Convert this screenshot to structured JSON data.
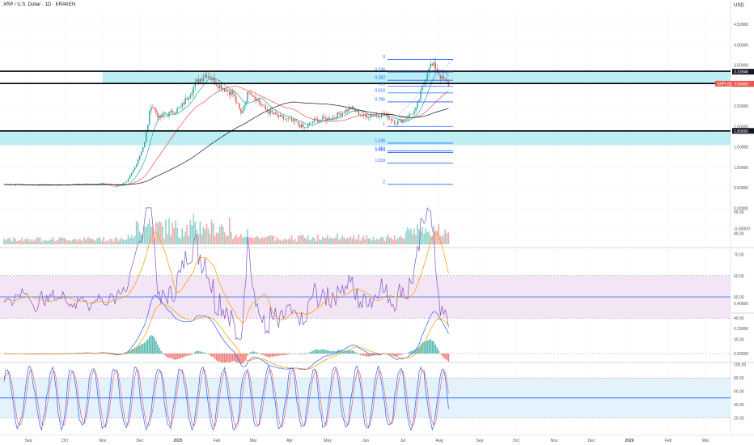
{
  "header": {
    "symbol_title": "XRP / U.S. Dollar · 1D · KRAKEN",
    "currency": "USD"
  },
  "colors": {
    "up": "#26a69a",
    "down": "#ef5350",
    "zone": "#b2ebf2",
    "fib": "#2962ff",
    "rsi_band": "#f3e5f5",
    "stoch_band": "#e3f2fd",
    "ma_fast": "#26a69a",
    "ma_mid": "#ef5350",
    "ma_slow": "#131722",
    "rsi": "#7e57c2",
    "rsi_ma": "#ff9800",
    "macd": "#2962ff",
    "signal": "#ff9800",
    "stoch_k": "#2962ff",
    "stoch_d": "#ef5350"
  },
  "price_axis": [
    {
      "label": "4.50000",
      "value": 4.5
    },
    {
      "label": "4.00000",
      "value": 4.0
    },
    {
      "label": "3.50000",
      "value": 3.5
    },
    {
      "label": "2.50000",
      "value": 2.5
    },
    {
      "label": "2.00000",
      "value": 2.0
    },
    {
      "label": "1.50000",
      "value": 1.5
    },
    {
      "label": "1.00000",
      "value": 1.0
    },
    {
      "label": "0.50000",
      "value": 0.5
    },
    {
      "label": "0.00000",
      "value": 0.0
    },
    {
      "label": "-0.50000",
      "value": -0.5
    }
  ],
  "price_tags": [
    {
      "label": "3.33946",
      "value": 3.33946,
      "color": "#131722"
    },
    {
      "label": "3.04143",
      "value": 3.04143,
      "color": "#131722"
    },
    {
      "label": "1.89065",
      "value": 1.89065,
      "color": "#131722"
    }
  ],
  "last_price_tag": {
    "symbol": "XRPUSD",
    "label": "3.04669",
    "value": 3.04669,
    "color": "#ef5350"
  },
  "fib_levels": [
    {
      "label": "0",
      "value": 3.64
    },
    {
      "label": "0.236",
      "value": 3.33
    },
    {
      "label": "0.382",
      "value": 3.13
    },
    {
      "label": "0.5",
      "value": 2.98
    },
    {
      "label": "0.618",
      "value": 2.82
    },
    {
      "label": "0.786",
      "value": 2.6
    },
    {
      "label": "1",
      "value": 2.0
    },
    {
      "label": "1.236",
      "value": 1.59
    },
    {
      "label": "1.382",
      "value": 1.4
    },
    {
      "label": "1.414",
      "value": 1.36
    },
    {
      "label": "1.618",
      "value": 1.1
    },
    {
      "label": "2",
      "value": 0.58
    }
  ],
  "horizontal_levels": [
    {
      "name": "upper-resistance",
      "value": 3.35
    },
    {
      "name": "mid-resistance",
      "value": 3.05
    },
    {
      "name": "lower-support",
      "value": 1.89
    }
  ],
  "rsi_axis": [
    {
      "label": "90.00",
      "value": 90
    },
    {
      "label": "80.00",
      "value": 80
    },
    {
      "label": "70.00",
      "value": 70
    },
    {
      "label": "60.00",
      "value": 60
    },
    {
      "label": "50.00",
      "value": 50
    },
    {
      "label": "40.00",
      "value": 40
    },
    {
      "label": "30.00",
      "value": 30
    }
  ],
  "macd_axis": [
    {
      "label": "0.40000",
      "value": 0.4
    },
    {
      "label": "0.20000",
      "value": 0.2
    },
    {
      "label": "0.00000",
      "value": 0.0
    }
  ],
  "stoch_axis": [
    {
      "label": "100.00",
      "value": 100
    },
    {
      "label": "80.00",
      "value": 80
    },
    {
      "label": "60.00",
      "value": 60
    },
    {
      "label": "40.00",
      "value": 40
    },
    {
      "label": "20.00",
      "value": 20
    }
  ],
  "time_axis": [
    "Sep",
    "Oct",
    "Nov",
    "Dec",
    "2025",
    "Feb",
    "Mar",
    "Apr",
    "May",
    "Jun",
    "Jul",
    "Aug",
    "Sep",
    "Oct",
    "Nov",
    "Dec",
    "2026",
    "Feb",
    "Mar"
  ]
}
